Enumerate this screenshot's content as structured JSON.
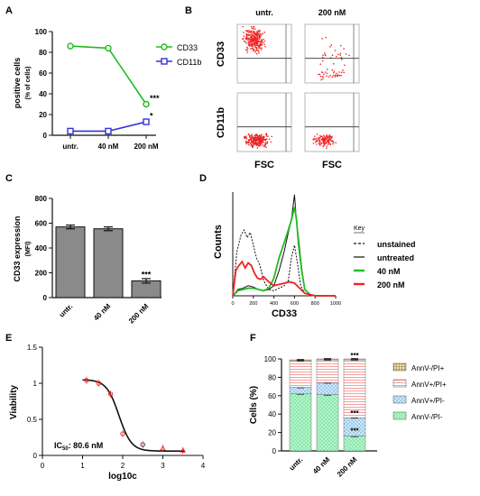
{
  "colors": {
    "green": "#22bb22",
    "blue": "#3333dd",
    "red": "#ee2222",
    "gray": "#8a8a8a",
    "dark": "#111111",
    "fitline": "#111111",
    "crosshair": "#333333",
    "annv_neg_pi_neg": "#9cf0bb",
    "annv_pos_pi_neg": "#c7e3f6",
    "annv_pos_pi_pos": "#f8c8c8",
    "annv_neg_pi_pos": "#c8b060"
  },
  "panel_letters": [
    "A",
    "B",
    "C",
    "D",
    "E",
    "F"
  ],
  "chart_data": [
    {
      "panel": "A",
      "type": "line",
      "categories": [
        "untr.",
        "40 nM",
        "200 nM"
      ],
      "ylabel": "positive cells",
      "ylabel2": "(% of cells)",
      "ylim": [
        0,
        100
      ],
      "yticks": [
        0,
        20,
        40,
        60,
        80,
        100
      ],
      "series": [
        {
          "name": "CD33",
          "values": [
            86,
            84,
            30
          ],
          "color": "#22bb22",
          "marker": "circle"
        },
        {
          "name": "CD11b",
          "values": [
            4,
            4,
            13
          ],
          "color": "#3333dd",
          "marker": "square"
        }
      ],
      "annotations": [
        {
          "text": "***",
          "category": "200 nM",
          "value": 35
        },
        {
          "text": "*",
          "category": "200 nM",
          "value": 18
        }
      ],
      "legend_position": "right"
    },
    {
      "panel": "B",
      "type": "scatter",
      "column_titles": [
        "untr.",
        "200 nM"
      ],
      "row_labels": [
        "CD33",
        "CD11b"
      ],
      "xlabel": "FSC",
      "grid": [
        {
          "row": 0,
          "col": 0,
          "density": "high",
          "cluster_level": "high"
        },
        {
          "row": 0,
          "col": 1,
          "density": "low",
          "cluster_level": "mixed"
        },
        {
          "row": 1,
          "col": 0,
          "density": "high",
          "cluster_level": "low"
        },
        {
          "row": 1,
          "col": 1,
          "density": "medium",
          "cluster_level": "low"
        }
      ]
    },
    {
      "panel": "C",
      "type": "bar",
      "categories": [
        "untr.",
        "40 nM",
        "200 nM"
      ],
      "values": [
        570,
        555,
        135
      ],
      "errors": [
        15,
        15,
        18
      ],
      "ylabel": "CD33 expression",
      "ylabel2": "(MFI)",
      "ylim": [
        0,
        800
      ],
      "yticks": [
        0,
        200,
        400,
        600,
        800
      ],
      "annotations": [
        {
          "text": "***",
          "category": "200 nM",
          "value": 165
        }
      ]
    },
    {
      "panel": "D",
      "type": "line",
      "xlabel": "CD33",
      "ylabel": "Counts",
      "xlim": [
        0,
        1000
      ],
      "xticks": [
        0,
        200,
        400,
        600,
        800,
        1000
      ],
      "legend_title": "Key",
      "legend_position": "right",
      "series": [
        {
          "name": "unstained",
          "style": "dashed",
          "color": "#111111",
          "x": [
            0,
            40,
            80,
            110,
            140,
            170,
            200,
            230,
            260,
            300,
            350,
            400,
            450,
            500,
            540,
            570,
            600,
            630,
            660,
            700,
            800,
            1000
          ],
          "y": [
            0,
            35,
            48,
            52,
            46,
            50,
            40,
            30,
            25,
            12,
            5,
            4,
            6,
            8,
            12,
            30,
            40,
            25,
            8,
            2,
            0,
            0
          ]
        },
        {
          "name": "untreated",
          "style": "solid",
          "color": "#111111",
          "x": [
            0,
            50,
            100,
            150,
            200,
            250,
            300,
            350,
            400,
            450,
            500,
            540,
            570,
            600,
            620,
            640,
            670,
            700,
            750,
            800,
            1000
          ],
          "y": [
            0,
            5,
            6,
            8,
            7,
            5,
            4,
            5,
            8,
            20,
            35,
            50,
            60,
            80,
            58,
            45,
            22,
            5,
            1,
            0,
            0
          ]
        },
        {
          "name": "40 nM",
          "style": "solid",
          "color": "#22bb22",
          "x": [
            0,
            50,
            100,
            150,
            200,
            250,
            300,
            350,
            400,
            450,
            500,
            540,
            570,
            600,
            620,
            640,
            670,
            700,
            750,
            800,
            1000
          ],
          "y": [
            0,
            4,
            5,
            6,
            6,
            5,
            4,
            6,
            14,
            30,
            42,
            52,
            60,
            70,
            60,
            40,
            20,
            5,
            1,
            0,
            0
          ]
        },
        {
          "name": "200 nM",
          "style": "solid",
          "color": "#ee2222",
          "x": [
            0,
            30,
            60,
            90,
            120,
            150,
            180,
            210,
            240,
            270,
            300,
            350,
            400,
            450,
            500,
            550,
            600,
            650,
            700,
            800,
            1000
          ],
          "y": [
            0,
            20,
            24,
            27,
            22,
            26,
            24,
            18,
            14,
            13,
            15,
            11,
            8,
            9,
            10,
            11,
            10,
            6,
            2,
            0,
            0
          ]
        }
      ]
    },
    {
      "panel": "E",
      "type": "scatter",
      "xlabel": "log10c",
      "ylabel": "Viability",
      "xlim": [
        0,
        4
      ],
      "ylim": [
        0,
        1.5
      ],
      "xticks": [
        0,
        1,
        2,
        3,
        4
      ],
      "yticks": [
        0.0,
        0.5,
        1.0,
        1.5
      ],
      "ic50_prefix": "IC",
      "ic50_sub": "50",
      "ic50_value": ": 80.6 nM",
      "points": [
        {
          "x": 1.1,
          "y": 1.04,
          "marker": "circle"
        },
        {
          "x": 1.4,
          "y": 1.0,
          "marker": "circle"
        },
        {
          "x": 1.7,
          "y": 0.85,
          "marker": "circle"
        },
        {
          "x": 2.0,
          "y": 0.3,
          "marker": "circle"
        },
        {
          "x": 2.5,
          "y": 0.15,
          "marker": "circle"
        },
        {
          "x": 3.0,
          "y": 0.1,
          "marker": "triangle"
        },
        {
          "x": 3.5,
          "y": 0.07,
          "marker": "triangle"
        }
      ],
      "fit": {
        "type": "sigmoid",
        "top": 1.05,
        "bottom": 0.06,
        "logIC50": 1.906,
        "hill": -2.8
      },
      "series_color": "#ee2222"
    },
    {
      "panel": "F",
      "type": "bar",
      "stacked": true,
      "categories": [
        "untr.",
        "40 nM",
        "200 nM"
      ],
      "ylabel": "Cells (%)",
      "ylim": [
        0,
        100
      ],
      "yticks": [
        0,
        20,
        40,
        60,
        80,
        100
      ],
      "series": [
        {
          "name": "AnnV-/PI-",
          "values": [
            62,
            61,
            16
          ],
          "pattern": "green"
        },
        {
          "name": "AnnV+/PI-",
          "values": [
            7,
            13,
            20
          ],
          "pattern": "blue"
        },
        {
          "name": "AnnV+/PI+",
          "values": [
            29,
            25,
            63
          ],
          "pattern": "red"
        },
        {
          "name": "AnnV-/PI+",
          "values": [
            1,
            1,
            1
          ],
          "pattern": "olive"
        }
      ],
      "legend_order": [
        "AnnV-/PI+",
        "AnnV+/PI+",
        "AnnV+/PI-",
        "AnnV-/PI-"
      ],
      "annotations": [
        {
          "text": "***",
          "category": "200 nM",
          "value": 101
        },
        {
          "text": "***",
          "category": "200 nM",
          "value": 38
        },
        {
          "text": "***",
          "category": "200 nM",
          "value": 19
        }
      ]
    }
  ]
}
